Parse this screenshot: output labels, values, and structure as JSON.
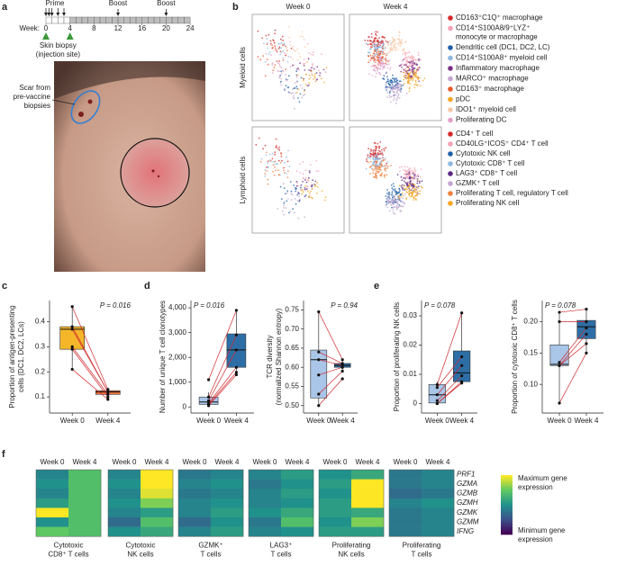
{
  "panel_labels": [
    "a",
    "b",
    "c",
    "d",
    "e",
    "f"
  ],
  "panel_a": {
    "prime_label": "Prime",
    "boost_labels": [
      "Boost",
      "Boost"
    ],
    "week_label": "Week:",
    "week_ticks": [
      0,
      4,
      8,
      12,
      16,
      20,
      24
    ],
    "prime_weeks": [
      0,
      0.5,
      1,
      2,
      3
    ],
    "boost_weeks": [
      12,
      20
    ],
    "biopsy_weeks": [
      0,
      4
    ],
    "biopsy_label": [
      "Skin biopsy",
      "(injection site)"
    ],
    "scar_label": [
      "Scar from",
      "pre-vaccine",
      "biopsies"
    ]
  },
  "panel_b": {
    "columns": [
      "Week 0",
      "Week 4"
    ],
    "rows": [
      "Myeloid cells",
      "Lymphoid cells"
    ],
    "legends": [
      [
        {
          "name": "CD163⁺C1Q⁺ macrophage",
          "color": "#d62728"
        },
        {
          "name": [
            "CD14⁺S100A8/9⁺LYZ⁺",
            "monocyte or macrophage"
          ],
          "color": "#f4a3b5"
        },
        {
          "name": "Dendritic cell (DC1, DC2, LC)",
          "color": "#1f5fa8"
        },
        {
          "name": "CD14⁺S100A8⁺ myeloid cell",
          "color": "#8fb8e0"
        },
        {
          "name": "Inflammatory macrophage",
          "color": "#7b2f86"
        },
        {
          "name": "MARCO⁺ macrophage",
          "color": "#c2a5cf"
        },
        {
          "name": "CD163⁺ macrophage",
          "color": "#e85a2a"
        },
        {
          "name": "pDC",
          "color": "#f5a623"
        },
        {
          "name": "IDO1⁺ myeloid cell",
          "color": "#f7c9a8"
        },
        {
          "name": "Proliferating DC",
          "color": "#e0a0c8"
        }
      ],
      [
        {
          "name": "CD4⁺ T cell",
          "color": "#d62728"
        },
        {
          "name": "CD40LG⁺ICOS⁺ CD4⁺ T cell",
          "color": "#f4a3b5"
        },
        {
          "name": "Cytotoxic NK cell",
          "color": "#1f5fa8"
        },
        {
          "name": "Cytotoxic CD8⁺ T cell",
          "color": "#8fb8e0"
        },
        {
          "name": "LAG3⁺ CD8⁺ T cell",
          "color": "#5b2a86"
        },
        {
          "name": "GZMK⁺ T cell",
          "color": "#c2a5cf"
        },
        {
          "name": "Proliferating T cell, regulatory T cell",
          "color": "#f07f3c"
        },
        {
          "name": "Proliferating NK cell",
          "color": "#f5a623"
        }
      ]
    ]
  },
  "chart_data": [
    {
      "type": "box",
      "ylabel": [
        "Proportion of antigen-presenting",
        "cells (DC1, DC2, LCs)"
      ],
      "p_label": "P = 0.016",
      "p_position": "right",
      "categories": [
        "Week 0",
        "Week 4"
      ],
      "colors": [
        "#f5b62a",
        "#e8743b"
      ],
      "ylim": [
        0.05,
        0.47
      ],
      "yticks": [
        0.1,
        0.2,
        0.3,
        0.4
      ],
      "boxes": [
        {
          "q1": 0.29,
          "median": 0.37,
          "q3": 0.38,
          "whisker_low": 0.21,
          "whisker_high": 0.46
        },
        {
          "q1": 0.11,
          "median": 0.12,
          "q3": 0.125,
          "whisker_low": 0.09,
          "whisker_high": 0.13
        }
      ],
      "points": [
        [
          0.46,
          0.38,
          0.37,
          0.3,
          0.29,
          0.21
        ],
        [
          0.13,
          0.12,
          0.12,
          0.11,
          0.1,
          0.09
        ]
      ]
    },
    {
      "type": "box",
      "ylabel": [
        "Number of unique T cell clonotypes"
      ],
      "p_label": "P = 0.016",
      "p_position": "left",
      "categories": [
        "Week 0",
        "Week 4"
      ],
      "colors": [
        "#a9c6e8",
        "#2e6ea6"
      ],
      "ylim": [
        -100,
        4150
      ],
      "yticks": [
        0,
        {
          "value": 1000,
          "label": "1,000"
        },
        {
          "value": 2000,
          "label": "2,000"
        },
        {
          "value": 3000,
          "label": "3,000"
        },
        {
          "value": 4000,
          "label": "4,000"
        }
      ],
      "boxes": [
        {
          "q1": 100,
          "median": 200,
          "q3": 400,
          "whisker_low": 50,
          "whisker_high": 600
        },
        {
          "q1": 1600,
          "median": 2300,
          "q3": 2950,
          "whisker_low": 1300,
          "whisker_high": 3900
        }
      ],
      "points": [
        [
          1100,
          400,
          250,
          150,
          100,
          50
        ],
        [
          3900,
          2900,
          2300,
          1600,
          1400,
          1300
        ]
      ]
    },
    {
      "type": "box",
      "ylabel": [
        "TCR diversity",
        "(normalized Shannon entropy)"
      ],
      "p_label": "P = 0.94",
      "p_position": "right",
      "categories": [
        "Week 0",
        "Week 4"
      ],
      "colors": [
        "#a9c6e8",
        "#2e6ea6"
      ],
      "ylim": [
        0.49,
        0.765
      ],
      "yticks": [
        {
          "value": 0.5,
          "label": "0.50"
        },
        0.55,
        {
          "value": 0.6,
          "label": "0.60"
        },
        0.65,
        {
          "value": 0.7,
          "label": "0.70"
        },
        0.75
      ],
      "boxes": [
        {
          "q1": 0.52,
          "median": 0.62,
          "q3": 0.645,
          "whisker_low": 0.5,
          "whisker_high": 0.745
        },
        {
          "q1": 0.6,
          "median": 0.605,
          "q3": 0.61,
          "whisker_low": 0.59,
          "whisker_high": 0.62
        }
      ],
      "points": [
        [
          0.745,
          0.64,
          0.62,
          0.58,
          0.53,
          0.5
        ],
        [
          0.62,
          0.61,
          0.605,
          0.6,
          0.59,
          0.57
        ]
      ]
    },
    {
      "type": "box",
      "ylabel": [
        "Proportion of proliferating NK cells"
      ],
      "p_label": "P = 0.078",
      "p_position": "left",
      "categories": [
        "Week 0",
        "Week 4"
      ],
      "colors": [
        "#a9c6e8",
        "#2e6ea6"
      ],
      "ylim": [
        -0.002,
        0.034
      ],
      "yticks": [
        0,
        0.01,
        0.02,
        0.03
      ],
      "boxes": [
        {
          "q1": 0.0002,
          "median": 0.003,
          "q3": 0.0065,
          "whisker_low": 0,
          "whisker_high": 0.0075
        },
        {
          "q1": 0.0075,
          "median": 0.0105,
          "q3": 0.018,
          "whisker_low": 0.007,
          "whisker_high": 0.031
        }
      ],
      "points": [
        [
          0.0065,
          0.0055,
          0.003,
          0.001,
          0,
          0
        ],
        [
          0.031,
          0.016,
          0.013,
          0.0095,
          0.0075,
          0.007
        ]
      ]
    },
    {
      "type": "box",
      "ylabel": [
        "Proportion of cytotoxic CD8⁺ T cells"
      ],
      "p_label": "P = 0.078",
      "p_position": "left",
      "categories": [
        "Week 0",
        "Week 4"
      ],
      "colors": [
        "#a9c6e8",
        "#2e6ea6"
      ],
      "ylim": [
        0.06,
        0.228
      ],
      "yticks": [
        {
          "value": 0.1,
          "label": "0.10"
        },
        0.15,
        {
          "value": 0.2,
          "label": "0.20"
        }
      ],
      "boxes": [
        {
          "q1": 0.13,
          "median": 0.132,
          "q3": 0.163,
          "whisker_low": 0.07,
          "whisker_high": 0.215
        },
        {
          "q1": 0.173,
          "median": 0.192,
          "q3": 0.202,
          "whisker_low": 0.15,
          "whisker_high": 0.22
        }
      ],
      "points": [
        [
          0.215,
          0.2,
          0.135,
          0.13,
          0.13,
          0.07
        ],
        [
          0.22,
          0.2,
          0.19,
          0.18,
          0.165,
          0.15
        ]
      ]
    },
    {
      "type": "heatmap",
      "columns": [
        "Week 0",
        "Week 4"
      ],
      "rows": [
        "PRF1",
        "GZMA",
        "GZMB",
        "GZMH",
        "GZMK",
        "GZMM",
        "IFNG"
      ],
      "colorbar_labels": {
        "max": [
          "Maximum gene",
          "expression"
        ],
        "min": [
          "Minimum gene",
          "expression"
        ]
      },
      "groups": [
        {
          "name": [
            "Cytotoxic",
            "CD8⁺ T cells"
          ],
          "values": [
            [
              0.45,
              0.7
            ],
            [
              0.5,
              0.7
            ],
            [
              0.45,
              0.7
            ],
            [
              0.55,
              0.7
            ],
            [
              1.0,
              0.7
            ],
            [
              0.5,
              0.7
            ],
            [
              0.75,
              0.7
            ]
          ]
        },
        {
          "name": [
            "Cytotoxic",
            "NK cells"
          ],
          "values": [
            [
              0.45,
              1.0
            ],
            [
              0.5,
              1.0
            ],
            [
              0.45,
              0.95
            ],
            [
              0.5,
              0.8
            ],
            [
              0.45,
              0.55
            ],
            [
              0.35,
              0.7
            ],
            [
              0.5,
              0.6
            ]
          ]
        },
        {
          "name": [
            "GZMK⁺",
            "T cells"
          ],
          "values": [
            [
              0.4,
              0.45
            ],
            [
              0.45,
              0.5
            ],
            [
              0.4,
              0.45
            ],
            [
              0.45,
              0.5
            ],
            [
              0.45,
              0.55
            ],
            [
              0.35,
              0.5
            ],
            [
              0.45,
              0.55
            ]
          ]
        },
        {
          "name": [
            "LAG3⁺",
            "T cells"
          ],
          "values": [
            [
              0.45,
              0.55
            ],
            [
              0.4,
              0.5
            ],
            [
              0.45,
              0.55
            ],
            [
              0.45,
              0.5
            ],
            [
              0.5,
              0.6
            ],
            [
              0.4,
              0.7
            ],
            [
              0.45,
              0.5
            ]
          ]
        },
        {
          "name": [
            "Proliferating",
            "NK cells"
          ],
          "values": [
            [
              0.5,
              0.6
            ],
            [
              0.55,
              1.0
            ],
            [
              0.5,
              1.0
            ],
            [
              0.55,
              1.0
            ],
            [
              0.55,
              0.6
            ],
            [
              0.5,
              0.8
            ],
            [
              0.55,
              0.55
            ]
          ]
        },
        {
          "name": [
            "Proliferating",
            "T cells"
          ],
          "values": [
            [
              0.4,
              0.45
            ],
            [
              0.4,
              0.45
            ],
            [
              0.35,
              0.4
            ],
            [
              0.45,
              0.5
            ],
            [
              0.4,
              0.45
            ],
            [
              0.4,
              0.45
            ],
            [
              0.4,
              0.45
            ]
          ]
        }
      ]
    }
  ]
}
